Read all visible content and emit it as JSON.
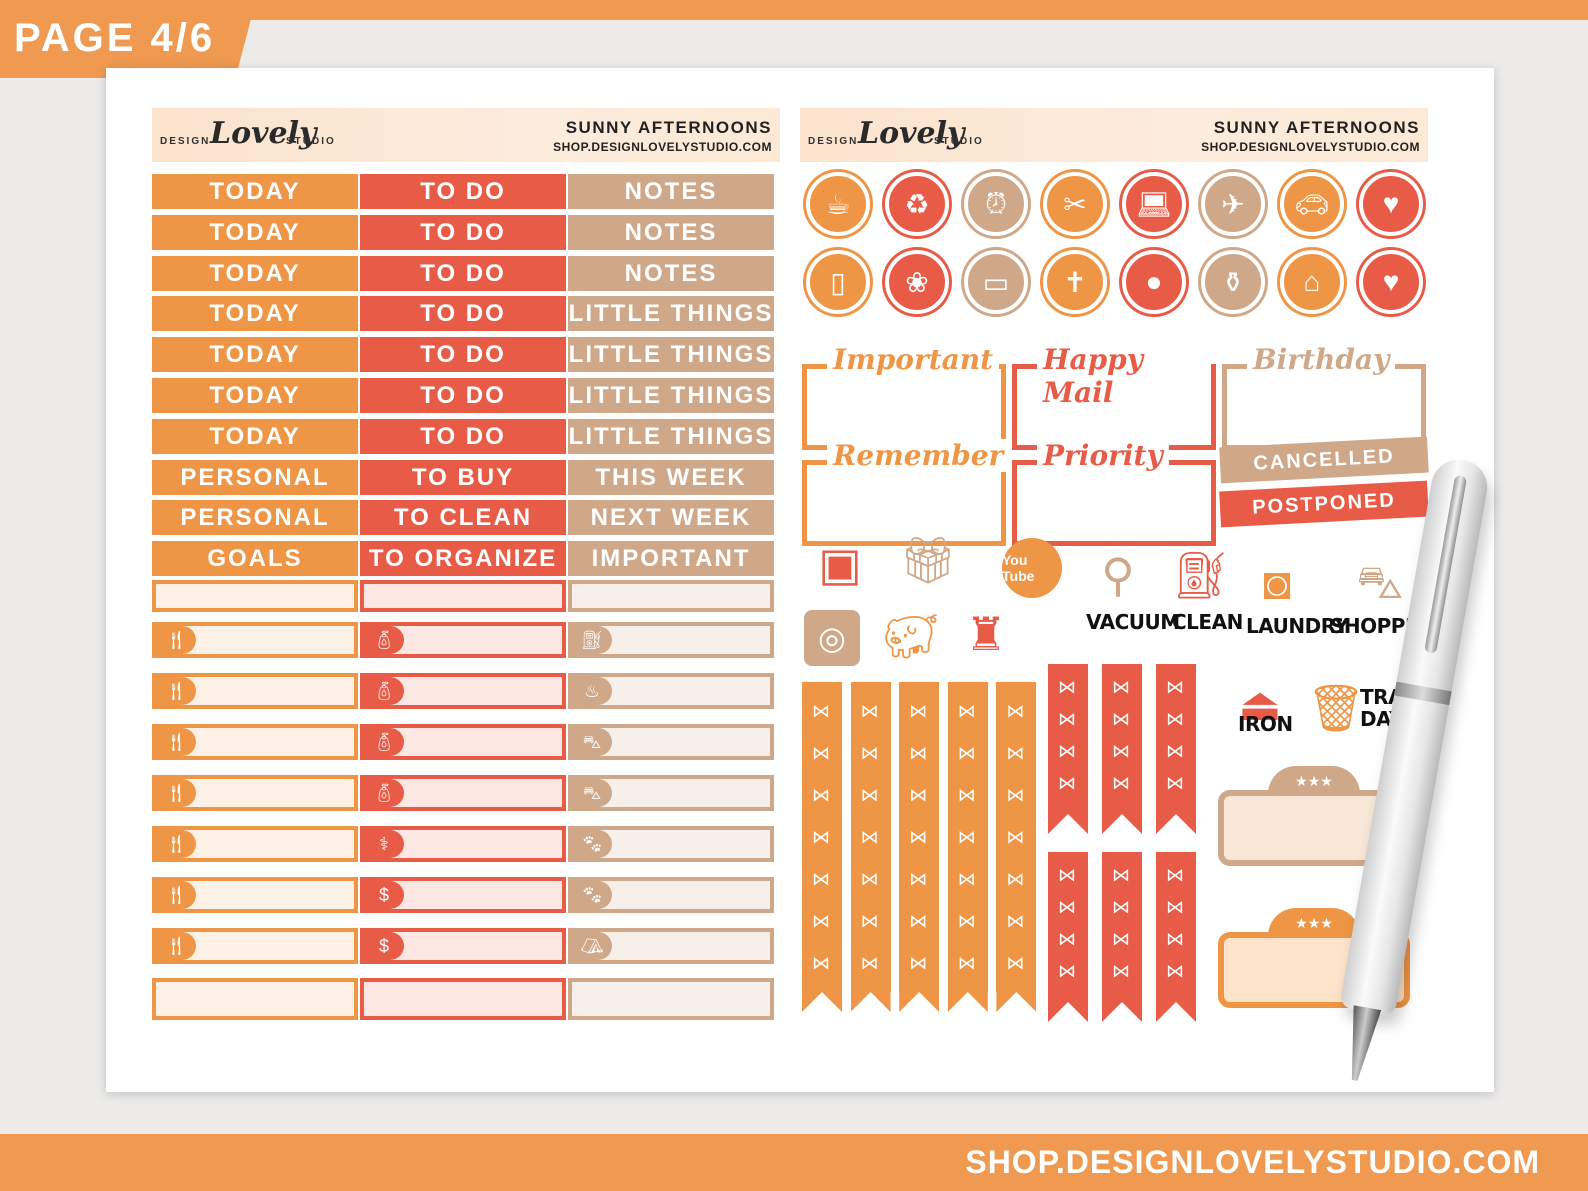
{
  "page_tab": "PAGE 4/6",
  "footer_url": "SHOP.DESIGNLOVELYSTUDIO.COM",
  "header": {
    "design": "DESIGN",
    "lovely": "Lovely",
    "studio": "STUDIO",
    "title": "SUNNY AFTERNOONS",
    "url": "SHOP.DESIGNLOVELYSTUDIO.COM"
  },
  "colors": {
    "orange": "#ef9646",
    "red": "#e85c47",
    "tan": "#cfa88a",
    "stripe": "#ef9a50"
  },
  "left_sheet": {
    "col_orange": [
      "TODAY",
      "TODAY",
      "TODAY",
      "TODAY",
      "TODAY",
      "TODAY",
      "TODAY",
      "PERSONAL",
      "PERSONAL",
      "GOALS"
    ],
    "col_red": [
      "TO DO",
      "TO DO",
      "TO DO",
      "TO DO",
      "TO DO",
      "TO DO",
      "TO DO",
      "TO BUY",
      "TO CLEAN",
      "TO ORGANIZE"
    ],
    "col_tan": [
      "NOTES",
      "NOTES",
      "NOTES",
      "LITTLE THINGS",
      "LITTLE THINGS",
      "LITTLE THINGS",
      "LITTLE THINGS",
      "THIS WEEK",
      "NEXT WEEK",
      "IMPORTANT"
    ],
    "icons_orange": [
      "utensils-icon",
      "utensils-icon",
      "utensils-icon",
      "utensils-icon",
      "utensils-icon",
      "utensils-icon",
      "utensils-icon"
    ],
    "icons_red": [
      "water-bottle-icon",
      "water-bottle-icon",
      "water-bottle-icon",
      "water-bottle-icon",
      "stethoscope-icon",
      "dollar-icon",
      "dollar-icon"
    ],
    "icons_tan": [
      "gas-pump-icon",
      "bucket-icon",
      "shopping-bag-icon",
      "shopping-bag-icon",
      "paw-icon",
      "paw-icon",
      "tooth-icon"
    ]
  },
  "right_sheet": {
    "circles_row1": [
      "mixer-icon",
      "recycle-icon",
      "alarm-clock-icon",
      "scissors-comb-icon",
      "laptop-icon",
      "airplane-icon",
      "car-icon",
      "heartbeat-icon"
    ],
    "circles_row2": [
      "phone-icon",
      "plant-icon",
      "credit-card-icon",
      "bible-icon",
      "pills-icon",
      "medicine-icon",
      "house-icon",
      "lunchbox-icon"
    ],
    "banners": [
      "Important",
      "Happy Mail",
      "Birthday",
      "Remember",
      "Priority"
    ],
    "stamps": [
      "CANCELLED",
      "POSTPONED"
    ],
    "icon_labels": {
      "vacuum": "VACUUM",
      "clean": "CLEAN",
      "laundry": "LAUNDRY",
      "shopping": "SHOPPING",
      "iron": "IRON",
      "trash_day": "TRASH DAY",
      "youtube": "You Tube"
    }
  }
}
